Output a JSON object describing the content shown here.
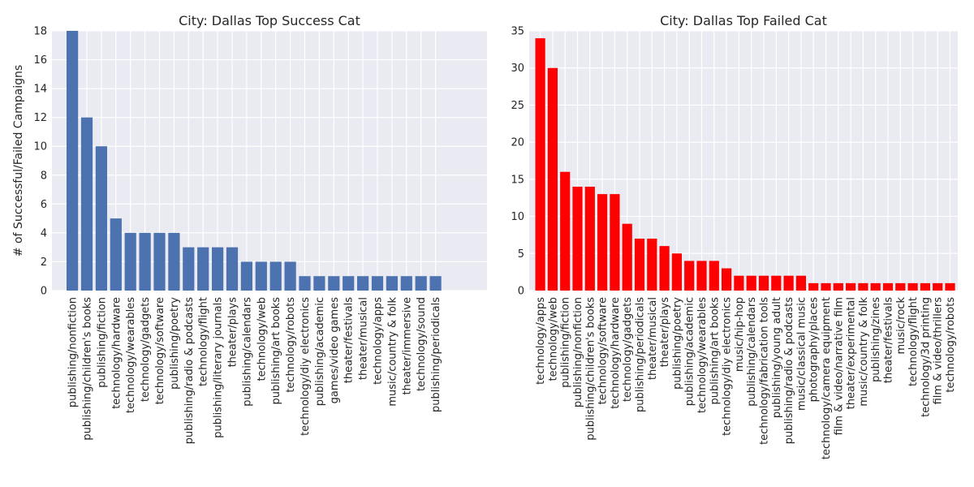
{
  "chart_data": [
    {
      "type": "bar",
      "title": "City: Dallas Top Success Cat",
      "ylabel": "# of Successful/Failed Campaigns",
      "xlabel": "",
      "ylim": [
        0,
        18
      ],
      "yticks": [
        0,
        2,
        4,
        6,
        8,
        10,
        12,
        14,
        16,
        18
      ],
      "grid": true,
      "bar_color": "#4c72b0",
      "background_color": "#eaeaf2",
      "categories": [
        "publishing/nonfiction",
        "publishing/children's books",
        "publishing/fiction",
        "technology/hardware",
        "technology/wearables",
        "technology/gadgets",
        "technology/software",
        "publishing/poetry",
        "publishing/radio & podcasts",
        "technology/flight",
        "publishing/literary journals",
        "theater/plays",
        "publishing/calendars",
        "technology/web",
        "publishing/art books",
        "technology/robots",
        "technology/diy electronics",
        "publishing/academic",
        "games/video games",
        "theater/festivals",
        "theater/musical",
        "technology/apps",
        "music/country & folk",
        "theater/immersive",
        "technology/sound",
        "publishing/periodicals"
      ],
      "values": [
        18,
        12,
        10,
        5,
        4,
        4,
        4,
        4,
        3,
        3,
        3,
        3,
        2,
        2,
        2,
        2,
        1,
        1,
        1,
        1,
        1,
        1,
        1,
        1,
        1,
        1
      ]
    },
    {
      "type": "bar",
      "title": "City: Dallas Top Failed Cat",
      "ylabel": "",
      "xlabel": "",
      "ylim": [
        0,
        35
      ],
      "yticks": [
        0,
        5,
        10,
        15,
        20,
        25,
        30,
        35
      ],
      "grid": true,
      "bar_color": "#ff0000",
      "background_color": "#eaeaf2",
      "categories": [
        "technology/apps",
        "technology/web",
        "publishing/fiction",
        "publishing/nonfiction",
        "publishing/children's books",
        "technology/software",
        "technology/hardware",
        "technology/gadgets",
        "publishing/periodicals",
        "theater/musical",
        "theater/plays",
        "publishing/poetry",
        "publishing/academic",
        "technology/wearables",
        "publishing/art books",
        "technology/diy electronics",
        "music/hip-hop",
        "publishing/calendars",
        "technology/fabrication tools",
        "publishing/young adult",
        "publishing/radio & podcasts",
        "music/classical music",
        "photography/places",
        "technology/camera equipment",
        "film & video/narrative film",
        "theater/experimental",
        "music/country & folk",
        "publishing/zines",
        "theater/festivals",
        "music/rock",
        "technology/flight",
        "technology/3d printing",
        "film & video/thrillers",
        "technology/robots"
      ],
      "values": [
        34,
        30,
        16,
        14,
        14,
        13,
        13,
        9,
        7,
        7,
        6,
        5,
        4,
        4,
        4,
        3,
        2,
        2,
        2,
        2,
        2,
        2,
        1,
        1,
        1,
        1,
        1,
        1,
        1,
        1,
        1,
        1,
        1,
        1
      ]
    }
  ]
}
